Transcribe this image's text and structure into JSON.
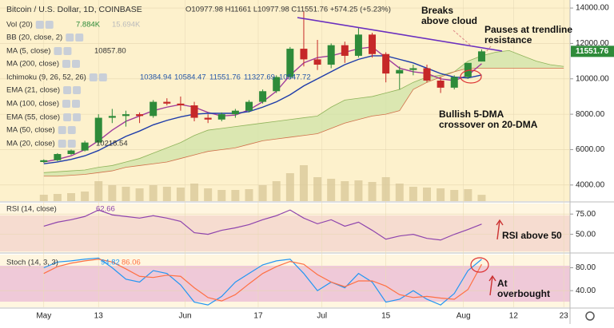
{
  "chart_data": {
    "type": "candlestick",
    "title": "Bitcoin / U.S. Dollar, 1D, COINBASE",
    "ohlc_text": "O10977.98 H11661 L10977.98 C11551.76 +574.25 (+5.23%)",
    "legend": [
      {
        "name": "Vol (20)",
        "values": [
          "7.884K",
          "15.694K"
        ]
      },
      {
        "name": "BB (20, close, 2)",
        "values": []
      },
      {
        "name": "MA (5, close)",
        "values": [
          "10857.80"
        ]
      },
      {
        "name": "MA (200, close)",
        "values": []
      },
      {
        "name": "Ichimoku (9, 26, 52, 26)",
        "values": [
          "10384.94",
          "10584.47",
          "11551.76",
          "11327.69",
          "10547.72"
        ]
      },
      {
        "name": "EMA (21, close)",
        "values": []
      },
      {
        "name": "MA (100, close)",
        "values": []
      },
      {
        "name": "EMA (55, close)",
        "values": []
      },
      {
        "name": "MA (50, close)",
        "values": []
      },
      {
        "name": "MA (20, close)",
        "values": [
          "10218.54"
        ]
      }
    ],
    "annotations": [
      {
        "lines": [
          "Breaks",
          "above cloud"
        ]
      },
      {
        "lines": [
          "Pauses at trendline",
          "resistance"
        ]
      },
      {
        "lines": [
          "Bullish 5-DMA",
          "crossover on 20-DMA"
        ]
      },
      {
        "lines": [
          "RSI above 50"
        ]
      },
      {
        "lines": [
          "At",
          "overbought"
        ]
      }
    ],
    "xlim": [
      -3.2,
      38.4
    ],
    "xticks": [
      {
        "value": 0,
        "label": "May"
      },
      {
        "value": 4,
        "label": "13"
      },
      {
        "value": 10.33,
        "label": "Jun"
      },
      {
        "value": 15.67,
        "label": "17"
      },
      {
        "value": 20.33,
        "label": "Jul"
      },
      {
        "value": 25,
        "label": "15"
      },
      {
        "value": 30.67,
        "label": "Aug"
      },
      {
        "value": 34.33,
        "label": "12"
      },
      {
        "value": 38,
        "label": "23"
      }
    ],
    "ylim": [
      3090,
      14454
    ],
    "yticks": [
      {
        "value": 4000,
        "label": "4000.00"
      },
      {
        "value": 6000,
        "label": "6000.00"
      },
      {
        "value": 8000,
        "label": "8000.00"
      },
      {
        "value": 10000,
        "label": "10000.00"
      },
      {
        "value": 12000,
        "label": "12000.00"
      },
      {
        "value": 14000,
        "label": "14000.00"
      }
    ],
    "up_color": "#2e8b3a",
    "down_color": "#c62828",
    "open": [
      5300,
      5400,
      5750,
      5950,
      6400,
      7800,
      7900,
      8000,
      7900,
      8700,
      8600,
      8500,
      7800,
      7700,
      8000,
      8200,
      8700,
      9300,
      10100,
      11700,
      11100,
      10800,
      11900,
      11300,
      12500,
      11400,
      10300,
      10500,
      10600,
      9900,
      9500,
      10100,
      10977.98
    ],
    "high": [
      5450,
      5800,
      6000,
      6500,
      8000,
      8300,
      8200,
      8100,
      8800,
      8900,
      9000,
      8700,
      8000,
      8100,
      8300,
      8800,
      9400,
      10200,
      11800,
      13800,
      12200,
      12000,
      12100,
      12900,
      12600,
      11500,
      10700,
      10800,
      10800,
      10100,
      10200,
      10900,
      11661
    ],
    "low": [
      5250,
      5350,
      5700,
      5900,
      6300,
      7500,
      7300,
      7500,
      7800,
      8500,
      8200,
      7600,
      7500,
      7600,
      7800,
      8100,
      8600,
      9200,
      10000,
      10700,
      10500,
      10600,
      10900,
      11200,
      11200,
      9800,
      9400,
      10200,
      9800,
      9200,
      9400,
      10000,
      10977.98
    ],
    "close": [
      5400,
      5750,
      5950,
      6400,
      7800,
      7900,
      8000,
      7900,
      8700,
      8600,
      8500,
      7800,
      7700,
      8000,
      8200,
      8700,
      9300,
      10100,
      11700,
      11100,
      10800,
      11900,
      11300,
      12500,
      11400,
      10300,
      10500,
      10600,
      9900,
      9500,
      10100,
      10900,
      11551.76
    ],
    "series": [
      {
        "name": "MA (5, close)",
        "color": "#a03c9c",
        "values": [
          5300,
          5450,
          5650,
          6000,
          6500,
          7100,
          7600,
          7900,
          8200,
          8400,
          8550,
          8400,
          8100,
          7900,
          7950,
          8250,
          8700,
          9300,
          10200,
          10900,
          11200,
          11300,
          11500,
          11700,
          11800,
          11200,
          10600,
          10400,
          10300,
          10000,
          9900,
          10200,
          10857.8
        ]
      },
      {
        "name": "MA (20, close)",
        "color": "#1e3caa",
        "values": [
          5200,
          5300,
          5450,
          5650,
          5950,
          6350,
          6750,
          7050,
          7400,
          7650,
          7850,
          8000,
          8050,
          8050,
          8050,
          8150,
          8400,
          8700,
          9100,
          9600,
          10000,
          10400,
          10800,
          11100,
          11300,
          11300,
          11100,
          10900,
          10600,
          10300,
          10100,
          10050,
          10218.54
        ]
      }
    ],
    "cloud": {
      "color": "#cfe3a8",
      "span_a": [
        4700,
        4750,
        4800,
        4850,
        5000,
        5100,
        5300,
        5500,
        5800,
        6100,
        6400,
        6800,
        7100,
        7200,
        7300,
        7400,
        7500,
        7600,
        7700,
        7800,
        7900,
        8400,
        8800,
        8900,
        9000,
        9200,
        9400,
        9800,
        10100,
        10200,
        10400,
        11000,
        11300,
        11500,
        11600,
        11300,
        11000,
        10800,
        10700
      ],
      "span_b": [
        4500,
        4500,
        4550,
        4600,
        4700,
        4800,
        5000,
        5100,
        5200,
        5300,
        5500,
        5700,
        5900,
        6000,
        6100,
        6300,
        6500,
        6600,
        6700,
        6800,
        6900,
        7200,
        7500,
        7700,
        7900,
        8000,
        8200,
        9400,
        9800,
        10100,
        10400,
        10600,
        10600,
        10600,
        10600,
        10600,
        10600,
        10600,
        10600
      ]
    },
    "volume": {
      "color": "#d9c99a",
      "values": [
        8,
        9,
        10,
        12,
        25,
        20,
        18,
        16,
        20,
        18,
        17,
        22,
        16,
        14,
        14,
        15,
        20,
        25,
        35,
        45,
        30,
        28,
        25,
        26,
        24,
        30,
        22,
        18,
        17,
        16,
        14,
        15,
        7.884
      ]
    },
    "rsi": {
      "name": "RSI (14, close)",
      "value_label": "62.66",
      "color": "#8e44ad",
      "ylim": [
        28,
        88
      ],
      "yticks": [
        {
          "value": 50,
          "label": "50.00"
        },
        {
          "value": 75,
          "label": "75.00"
        }
      ],
      "values": [
        60,
        65,
        68,
        72,
        80,
        74,
        72,
        70,
        73,
        70,
        66,
        52,
        50,
        55,
        58,
        62,
        68,
        73,
        80,
        70,
        63,
        68,
        60,
        65,
        55,
        44,
        48,
        50,
        45,
        43,
        50,
        56,
        62.66
      ]
    },
    "stoch": {
      "name": "Stoch (14, 3, 3)",
      "value_labels": [
        "94.82",
        "86.06"
      ],
      "ylim": [
        11,
        103
      ],
      "yticks": [
        {
          "value": 40,
          "label": "40.00"
        },
        {
          "value": 80,
          "label": "80.00"
        }
      ],
      "k": {
        "color": "#2196f3",
        "values": [
          80,
          90,
          92,
          95,
          97,
          80,
          60,
          55,
          75,
          70,
          50,
          20,
          15,
          30,
          55,
          70,
          85,
          92,
          95,
          70,
          40,
          55,
          45,
          70,
          55,
          20,
          25,
          40,
          25,
          15,
          35,
          75,
          94.82
        ]
      },
      "d": {
        "color": "#ff7043",
        "values": [
          70,
          82,
          88,
          92,
          95,
          90,
          78,
          65,
          63,
          67,
          65,
          45,
          28,
          22,
          33,
          52,
          70,
          82,
          91,
          86,
          68,
          55,
          47,
          57,
          57,
          48,
          33,
          28,
          30,
          27,
          25,
          42,
          86.06
        ]
      }
    }
  }
}
